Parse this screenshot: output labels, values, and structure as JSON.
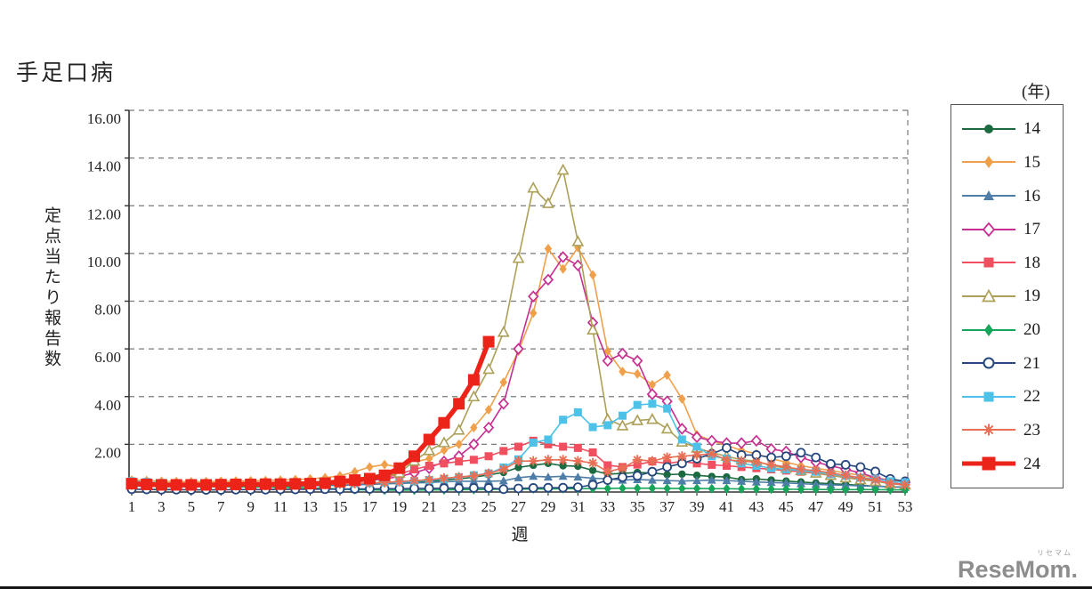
{
  "title": "手足口病",
  "y_axis": {
    "title": "定点当たり報告数",
    "ticks": [
      "16.00",
      "14.00",
      "12.00",
      "10.00",
      "8.00",
      "6.00",
      "4.00",
      "2.00"
    ],
    "tick_values": [
      16,
      14,
      12,
      10,
      8,
      6,
      4,
      2
    ]
  },
  "x_axis": {
    "title": "週",
    "ticks": [
      1,
      3,
      5,
      7,
      9,
      11,
      13,
      15,
      17,
      19,
      21,
      23,
      25,
      27,
      29,
      31,
      33,
      35,
      37,
      39,
      41,
      43,
      45,
      47,
      49,
      51,
      53
    ]
  },
  "legend": {
    "unit_label": "(年)",
    "position": "right-outside"
  },
  "watermark": {
    "brand": "ReseMom.",
    "ruby": "リセマム"
  },
  "chart_data": {
    "type": "line",
    "title": "手足口病",
    "xlabel": "週",
    "ylabel": "定点当たり報告数",
    "xlim": [
      1,
      53
    ],
    "ylim": [
      0,
      16
    ],
    "grid": "horizontal-dashed",
    "x": [
      1,
      2,
      3,
      4,
      5,
      6,
      7,
      8,
      9,
      10,
      11,
      12,
      13,
      14,
      15,
      16,
      17,
      18,
      19,
      20,
      21,
      22,
      23,
      24,
      25,
      26,
      27,
      28,
      29,
      30,
      31,
      32,
      33,
      34,
      35,
      36,
      37,
      38,
      39,
      40,
      41,
      42,
      43,
      44,
      45,
      46,
      47,
      48,
      49,
      50,
      51,
      52,
      53
    ],
    "series": [
      {
        "name": "14",
        "color": "#1c6b40",
        "marker": "circle",
        "line_width": 1.6,
        "values": [
          0.3,
          0.28,
          0.27,
          0.26,
          0.25,
          0.25,
          0.26,
          0.27,
          0.28,
          0.28,
          0.28,
          0.29,
          0.3,
          0.3,
          0.32,
          0.33,
          0.35,
          0.37,
          0.4,
          0.42,
          0.45,
          0.5,
          0.55,
          0.62,
          0.72,
          0.82,
          1.03,
          1.12,
          1.2,
          1.1,
          1.08,
          0.91,
          0.75,
          0.78,
          0.82,
          0.8,
          0.73,
          0.75,
          0.7,
          0.65,
          0.63,
          0.52,
          0.55,
          0.5,
          0.46,
          0.42,
          0.38,
          0.35,
          0.32,
          0.28,
          0.25,
          0.22,
          0.2
        ]
      },
      {
        "name": "15",
        "color": "#f0a04b",
        "marker": "diamond",
        "line_width": 1.6,
        "values": [
          0.5,
          0.48,
          0.45,
          0.44,
          0.43,
          0.44,
          0.45,
          0.46,
          0.47,
          0.48,
          0.5,
          0.52,
          0.55,
          0.6,
          0.68,
          0.85,
          1.05,
          1.15,
          1.05,
          1.25,
          1.4,
          1.75,
          2.0,
          2.7,
          3.45,
          4.6,
          5.9,
          7.5,
          10.2,
          9.35,
          10.25,
          9.1,
          5.9,
          5.05,
          4.95,
          4.5,
          4.9,
          3.9,
          2.4,
          2.15,
          1.95,
          1.75,
          1.6,
          1.4,
          1.25,
          1.1,
          1.0,
          0.9,
          0.8,
          0.7,
          0.6,
          0.5,
          0.42
        ]
      },
      {
        "name": "16",
        "color": "#4e7ea8",
        "marker": "triangle",
        "line_width": 1.6,
        "values": [
          0.25,
          0.24,
          0.23,
          0.22,
          0.22,
          0.22,
          0.23,
          0.23,
          0.24,
          0.24,
          0.25,
          0.25,
          0.26,
          0.27,
          0.28,
          0.3,
          0.32,
          0.34,
          0.36,
          0.38,
          0.4,
          0.43,
          0.45,
          0.45,
          0.45,
          0.47,
          0.6,
          0.66,
          0.63,
          0.66,
          0.63,
          0.58,
          0.55,
          0.5,
          0.52,
          0.5,
          0.48,
          0.46,
          0.48,
          0.5,
          0.48,
          0.45,
          0.42,
          0.4,
          0.38,
          0.35,
          0.32,
          0.3,
          0.28,
          0.26,
          0.24,
          0.22,
          0.2
        ]
      },
      {
        "name": "17",
        "color": "#c72f90",
        "marker": "diamond-open",
        "line_width": 1.6,
        "values": [
          0.32,
          0.3,
          0.3,
          0.29,
          0.28,
          0.28,
          0.29,
          0.3,
          0.3,
          0.31,
          0.32,
          0.33,
          0.34,
          0.35,
          0.38,
          0.42,
          0.48,
          0.55,
          0.65,
          0.8,
          1.0,
          1.28,
          1.5,
          2.0,
          2.7,
          3.7,
          6.0,
          8.2,
          8.9,
          9.85,
          9.5,
          7.1,
          5.5,
          5.8,
          5.5,
          4.1,
          3.8,
          2.65,
          2.3,
          2.15,
          2.05,
          2.05,
          2.15,
          1.8,
          1.7,
          1.45,
          1.25,
          1.1,
          0.95,
          0.8,
          0.6,
          0.45,
          0.4
        ]
      },
      {
        "name": "18",
        "color": "#ef4f5f",
        "marker": "square",
        "line_width": 1.6,
        "values": [
          0.35,
          0.33,
          0.32,
          0.31,
          0.3,
          0.3,
          0.31,
          0.32,
          0.33,
          0.34,
          0.35,
          0.36,
          0.38,
          0.4,
          0.42,
          0.46,
          0.52,
          0.6,
          0.75,
          0.95,
          1.1,
          1.2,
          1.28,
          1.35,
          1.5,
          1.72,
          1.9,
          2.15,
          2.0,
          1.9,
          1.85,
          1.66,
          1.12,
          1.05,
          1.15,
          1.28,
          1.2,
          1.28,
          1.2,
          1.14,
          1.1,
          1.05,
          1.0,
          0.95,
          0.9,
          0.85,
          0.78,
          0.7,
          0.62,
          0.55,
          0.48,
          0.38,
          0.32
        ]
      },
      {
        "name": "19",
        "color": "#ac9f58",
        "marker": "triangle-open",
        "line_width": 1.6,
        "values": [
          0.3,
          0.29,
          0.28,
          0.27,
          0.27,
          0.27,
          0.28,
          0.28,
          0.29,
          0.3,
          0.31,
          0.32,
          0.34,
          0.36,
          0.4,
          0.45,
          0.52,
          0.62,
          0.8,
          1.3,
          1.74,
          2.07,
          2.6,
          4.0,
          5.15,
          6.7,
          9.8,
          12.75,
          12.1,
          13.5,
          10.5,
          6.8,
          3.05,
          2.78,
          3.0,
          3.05,
          2.65,
          2.1,
          1.85,
          1.65,
          1.5,
          1.35,
          1.3,
          1.1,
          1.0,
          0.9,
          0.8,
          0.7,
          0.6,
          0.52,
          0.45,
          0.35,
          0.3
        ]
      },
      {
        "name": "20",
        "color": "#17a55a",
        "marker": "diamond",
        "line_width": 1.6,
        "values": [
          0.3,
          0.28,
          0.26,
          0.25,
          0.24,
          0.23,
          0.22,
          0.22,
          0.21,
          0.2,
          0.2,
          0.19,
          0.18,
          0.15,
          0.12,
          0.1,
          0.09,
          0.08,
          0.08,
          0.08,
          0.09,
          0.09,
          0.1,
          0.1,
          0.11,
          0.12,
          0.12,
          0.13,
          0.13,
          0.14,
          0.14,
          0.15,
          0.15,
          0.16,
          0.16,
          0.16,
          0.15,
          0.15,
          0.15,
          0.14,
          0.14,
          0.13,
          0.13,
          0.12,
          0.12,
          0.11,
          0.11,
          0.1,
          0.1,
          0.1,
          0.1,
          0.09,
          0.09
        ]
      },
      {
        "name": "21",
        "color": "#26467e",
        "marker": "circle-open",
        "line_width": 1.6,
        "values": [
          0.12,
          0.11,
          0.1,
          0.1,
          0.09,
          0.09,
          0.09,
          0.1,
          0.1,
          0.1,
          0.11,
          0.11,
          0.12,
          0.12,
          0.12,
          0.13,
          0.13,
          0.14,
          0.14,
          0.15,
          0.15,
          0.16,
          0.16,
          0.17,
          0.17,
          0.12,
          0.15,
          0.17,
          0.18,
          0.18,
          0.2,
          0.3,
          0.5,
          0.62,
          0.68,
          0.85,
          1.05,
          1.2,
          1.4,
          1.6,
          1.85,
          1.55,
          1.55,
          1.45,
          1.5,
          1.65,
          1.45,
          1.18,
          1.14,
          1.05,
          0.86,
          0.55,
          0.45
        ]
      },
      {
        "name": "22",
        "color": "#4cc2e9",
        "marker": "square",
        "line_width": 1.6,
        "values": [
          0.45,
          0.42,
          0.38,
          0.35,
          0.33,
          0.32,
          0.31,
          0.3,
          0.3,
          0.3,
          0.31,
          0.32,
          0.33,
          0.34,
          0.35,
          0.36,
          0.38,
          0.4,
          0.42,
          0.45,
          0.5,
          0.55,
          0.62,
          0.7,
          0.78,
          1.03,
          1.37,
          2.07,
          2.2,
          3.03,
          3.34,
          2.72,
          2.8,
          3.2,
          3.65,
          3.7,
          3.5,
          2.2,
          1.9,
          1.5,
          1.4,
          1.2,
          1.1,
          1.0,
          0.95,
          0.9,
          0.85,
          0.75,
          0.68,
          0.6,
          0.55,
          0.45,
          0.4
        ]
      },
      {
        "name": "23",
        "color": "#e86f55",
        "marker": "asterisk",
        "line_width": 1.6,
        "values": [
          0.3,
          0.29,
          0.28,
          0.27,
          0.26,
          0.26,
          0.27,
          0.27,
          0.28,
          0.28,
          0.29,
          0.3,
          0.31,
          0.32,
          0.34,
          0.36,
          0.38,
          0.4,
          0.44,
          0.48,
          0.52,
          0.58,
          0.63,
          0.68,
          0.78,
          0.95,
          1.3,
          1.3,
          1.35,
          1.35,
          1.3,
          1.22,
          0.85,
          1.0,
          1.35,
          1.3,
          1.45,
          1.5,
          1.55,
          1.6,
          1.35,
          1.3,
          1.25,
          1.15,
          1.05,
          0.95,
          0.9,
          0.8,
          0.7,
          0.6,
          0.5,
          0.35,
          0.3
        ]
      },
      {
        "name": "24",
        "color": "#ec2318",
        "marker": "square-big",
        "line_width": 5.5,
        "values": [
          0.35,
          0.32,
          0.3,
          0.3,
          0.3,
          0.3,
          0.31,
          0.32,
          0.32,
          0.33,
          0.33,
          0.34,
          0.35,
          0.37,
          0.44,
          0.5,
          0.56,
          0.7,
          1.0,
          1.5,
          2.2,
          2.9,
          3.7,
          4.7,
          6.3
        ]
      }
    ]
  }
}
